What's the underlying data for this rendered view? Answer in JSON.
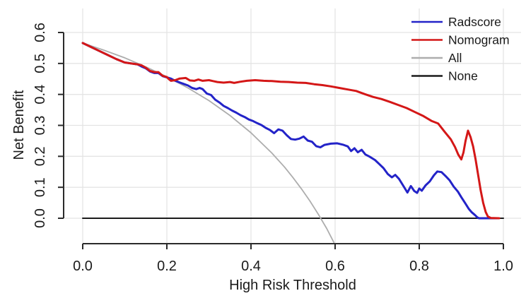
{
  "chart_data": {
    "type": "line",
    "title": "",
    "xlabel": "High Risk Threshold",
    "ylabel": "Net Benefit",
    "xlim": [
      0.0,
      1.0
    ],
    "ylim": [
      -0.08,
      0.6
    ],
    "grid": true,
    "grid_color": "#e4e4e4",
    "axis_color": "#2b2b2b",
    "text_color": "#1a1a1a",
    "legend_position": "top-right",
    "x_ticks": [
      0.0,
      0.2,
      0.4,
      0.6,
      0.8,
      1.0
    ],
    "x_tick_labels": [
      "0.0",
      "0.2",
      "0.4",
      "0.6",
      "0.8",
      "1.0"
    ],
    "y_ticks": [
      0.0,
      0.1,
      0.2,
      0.3,
      0.4,
      0.5,
      0.6
    ],
    "y_tick_labels": [
      "0.0",
      "0.1",
      "0.2",
      "0.3",
      "0.4",
      "0.5",
      "0.6"
    ],
    "z_order": [
      "None",
      "All",
      "Radscore",
      "Nomogram"
    ],
    "series": [
      {
        "name": "Radscore",
        "color": "#2323c8",
        "width": 3,
        "points": [
          [
            0,
            0.566
          ],
          [
            0.02,
            0.553
          ],
          [
            0.04,
            0.54
          ],
          [
            0.06,
            0.527
          ],
          [
            0.08,
            0.514
          ],
          [
            0.1,
            0.503
          ],
          [
            0.13,
            0.497
          ],
          [
            0.14,
            0.49
          ],
          [
            0.15,
            0.484
          ],
          [
            0.16,
            0.474
          ],
          [
            0.17,
            0.469
          ],
          [
            0.18,
            0.469
          ],
          [
            0.19,
            0.459
          ],
          [
            0.2,
            0.455
          ],
          [
            0.21,
            0.451
          ],
          [
            0.22,
            0.444
          ],
          [
            0.23,
            0.439
          ],
          [
            0.24,
            0.434
          ],
          [
            0.25,
            0.429
          ],
          [
            0.26,
            0.421
          ],
          [
            0.27,
            0.417
          ],
          [
            0.278,
            0.421
          ],
          [
            0.285,
            0.417
          ],
          [
            0.295,
            0.403
          ],
          [
            0.305,
            0.398
          ],
          [
            0.315,
            0.383
          ],
          [
            0.325,
            0.374
          ],
          [
            0.335,
            0.363
          ],
          [
            0.345,
            0.356
          ],
          [
            0.355,
            0.348
          ],
          [
            0.365,
            0.341
          ],
          [
            0.375,
            0.333
          ],
          [
            0.385,
            0.327
          ],
          [
            0.395,
            0.319
          ],
          [
            0.405,
            0.314
          ],
          [
            0.415,
            0.307
          ],
          [
            0.425,
            0.301
          ],
          [
            0.435,
            0.292
          ],
          [
            0.445,
            0.285
          ],
          [
            0.455,
            0.275
          ],
          [
            0.465,
            0.287
          ],
          [
            0.475,
            0.283
          ],
          [
            0.485,
            0.268
          ],
          [
            0.495,
            0.256
          ],
          [
            0.505,
            0.254
          ],
          [
            0.515,
            0.257
          ],
          [
            0.525,
            0.264
          ],
          [
            0.535,
            0.251
          ],
          [
            0.545,
            0.247
          ],
          [
            0.555,
            0.233
          ],
          [
            0.565,
            0.229
          ],
          [
            0.575,
            0.237
          ],
          [
            0.59,
            0.241
          ],
          [
            0.605,
            0.242
          ],
          [
            0.62,
            0.237
          ],
          [
            0.63,
            0.232
          ],
          [
            0.638,
            0.217
          ],
          [
            0.646,
            0.226
          ],
          [
            0.654,
            0.213
          ],
          [
            0.663,
            0.221
          ],
          [
            0.672,
            0.206
          ],
          [
            0.682,
            0.199
          ],
          [
            0.695,
            0.188
          ],
          [
            0.705,
            0.175
          ],
          [
            0.715,
            0.162
          ],
          [
            0.725,
            0.143
          ],
          [
            0.735,
            0.132
          ],
          [
            0.743,
            0.14
          ],
          [
            0.752,
            0.127
          ],
          [
            0.762,
            0.105
          ],
          [
            0.772,
            0.083
          ],
          [
            0.78,
            0.104
          ],
          [
            0.788,
            0.088
          ],
          [
            0.795,
            0.082
          ],
          [
            0.8,
            0.096
          ],
          [
            0.806,
            0.089
          ],
          [
            0.815,
            0.106
          ],
          [
            0.825,
            0.119
          ],
          [
            0.835,
            0.139
          ],
          [
            0.843,
            0.151
          ],
          [
            0.853,
            0.149
          ],
          [
            0.862,
            0.137
          ],
          [
            0.872,
            0.123
          ],
          [
            0.882,
            0.102
          ],
          [
            0.892,
            0.086
          ],
          [
            0.9,
            0.068
          ],
          [
            0.91,
            0.047
          ],
          [
            0.918,
            0.03
          ],
          [
            0.925,
            0.019
          ],
          [
            0.932,
            0.011
          ],
          [
            0.938,
            0.003
          ],
          [
            0.942,
            0.0
          ],
          [
            0.985,
            0.0
          ]
        ]
      },
      {
        "name": "Nomogram",
        "color": "#d41717",
        "width": 3,
        "points": [
          [
            0,
            0.566
          ],
          [
            0.02,
            0.553
          ],
          [
            0.04,
            0.54
          ],
          [
            0.06,
            0.527
          ],
          [
            0.08,
            0.514
          ],
          [
            0.1,
            0.503
          ],
          [
            0.13,
            0.497
          ],
          [
            0.14,
            0.494
          ],
          [
            0.15,
            0.486
          ],
          [
            0.16,
            0.476
          ],
          [
            0.17,
            0.472
          ],
          [
            0.18,
            0.472
          ],
          [
            0.19,
            0.46
          ],
          [
            0.2,
            0.456
          ],
          [
            0.205,
            0.449
          ],
          [
            0.21,
            0.444
          ],
          [
            0.22,
            0.446
          ],
          [
            0.23,
            0.451
          ],
          [
            0.245,
            0.453
          ],
          [
            0.255,
            0.445
          ],
          [
            0.265,
            0.444
          ],
          [
            0.275,
            0.448
          ],
          [
            0.285,
            0.444
          ],
          [
            0.3,
            0.446
          ],
          [
            0.31,
            0.443
          ],
          [
            0.32,
            0.44
          ],
          [
            0.335,
            0.438
          ],
          [
            0.35,
            0.44
          ],
          [
            0.36,
            0.437
          ],
          [
            0.375,
            0.441
          ],
          [
            0.39,
            0.444
          ],
          [
            0.41,
            0.446
          ],
          [
            0.43,
            0.444
          ],
          [
            0.45,
            0.443
          ],
          [
            0.47,
            0.441
          ],
          [
            0.49,
            0.44
          ],
          [
            0.51,
            0.438
          ],
          [
            0.53,
            0.437
          ],
          [
            0.55,
            0.433
          ],
          [
            0.57,
            0.43
          ],
          [
            0.59,
            0.426
          ],
          [
            0.61,
            0.421
          ],
          [
            0.63,
            0.416
          ],
          [
            0.65,
            0.411
          ],
          [
            0.67,
            0.401
          ],
          [
            0.69,
            0.392
          ],
          [
            0.71,
            0.385
          ],
          [
            0.73,
            0.376
          ],
          [
            0.75,
            0.366
          ],
          [
            0.77,
            0.356
          ],
          [
            0.79,
            0.343
          ],
          [
            0.81,
            0.33
          ],
          [
            0.83,
            0.314
          ],
          [
            0.845,
            0.306
          ],
          [
            0.86,
            0.28
          ],
          [
            0.875,
            0.255
          ],
          [
            0.885,
            0.23
          ],
          [
            0.893,
            0.205
          ],
          [
            0.9,
            0.19
          ],
          [
            0.905,
            0.212
          ],
          [
            0.91,
            0.25
          ],
          [
            0.916,
            0.283
          ],
          [
            0.922,
            0.262
          ],
          [
            0.928,
            0.232
          ],
          [
            0.934,
            0.19
          ],
          [
            0.94,
            0.14
          ],
          [
            0.946,
            0.09
          ],
          [
            0.952,
            0.05
          ],
          [
            0.958,
            0.02
          ],
          [
            0.963,
            0.006
          ],
          [
            0.97,
            0.001
          ],
          [
            0.99,
            0.0
          ]
        ]
      },
      {
        "name": "All",
        "color": "#adadad",
        "width": 1.8,
        "points": [
          [
            0,
            0.566
          ],
          [
            0.05,
            0.543
          ],
          [
            0.1,
            0.518
          ],
          [
            0.15,
            0.489
          ],
          [
            0.2,
            0.457
          ],
          [
            0.25,
            0.421
          ],
          [
            0.3,
            0.38
          ],
          [
            0.35,
            0.332
          ],
          [
            0.4,
            0.276
          ],
          [
            0.45,
            0.21
          ],
          [
            0.48,
            0.165
          ],
          [
            0.5,
            0.131
          ],
          [
            0.52,
            0.095
          ],
          [
            0.54,
            0.056
          ],
          [
            0.56,
            0.013
          ],
          [
            0.58,
            -0.033
          ],
          [
            0.597,
            -0.078
          ]
        ]
      },
      {
        "name": "None",
        "color": "#1a1a1a",
        "width": 2,
        "points": [
          [
            0,
            0.0
          ],
          [
            1.0,
            0.0
          ]
        ]
      }
    ]
  }
}
